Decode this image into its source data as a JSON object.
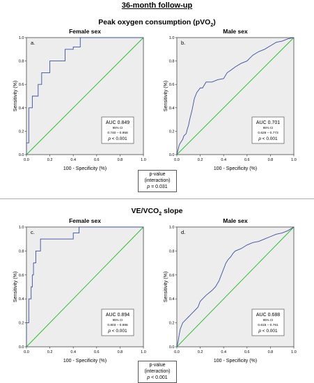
{
  "title": "36-month follow-up",
  "sections": [
    {
      "title_main": "Peak oxygen consumption (pVO",
      "title_sub": "2",
      "title_end": ")",
      "pvalue": {
        "line1": "p-value",
        "line2": "(interaction)",
        "p_sym": "p",
        "value": "= 0.031"
      }
    },
    {
      "title_main": "VE/VCO",
      "title_sub": "2",
      "title_end": " slope",
      "pvalue": {
        "line1": "p-value",
        "line2": "(interaction)",
        "p_sym": "p",
        "value": "< 0.001"
      }
    }
  ],
  "chart_data": [
    {
      "type": "line",
      "panel_title": "Female sex",
      "letter": "a.",
      "xlabel": "100 - Specificity (%)",
      "ylabel": "Sensitivity (%)",
      "xlim": [
        0,
        1
      ],
      "ylim": [
        0,
        1
      ],
      "xticks": [
        "0.0",
        "0.2",
        "0.4",
        "0.6",
        "0.8",
        "1.0"
      ],
      "yticks": [
        "0.0",
        "0.2",
        "0.4",
        "0.6",
        "0.8",
        "1.0"
      ],
      "series": [
        {
          "color": "#3a4fa0",
          "x": [
            0,
            0,
            0.02,
            0.02,
            0.05,
            0.05,
            0.1,
            0.1,
            0.13,
            0.13,
            0.2,
            0.2,
            0.33,
            0.33,
            0.4,
            0.4,
            0.46,
            0.46,
            1
          ],
          "y": [
            0,
            0.1,
            0.1,
            0.4,
            0.4,
            0.5,
            0.5,
            0.6,
            0.6,
            0.7,
            0.7,
            0.8,
            0.8,
            0.9,
            0.9,
            0.92,
            0.92,
            1,
            1
          ]
        },
        {
          "color": "#22bb22",
          "x": [
            0,
            1
          ],
          "y": [
            0,
            1
          ]
        }
      ],
      "stats": {
        "auc": "AUC 0.849",
        "ci_label": "95% CI",
        "ci": "0.740 – 0.958",
        "p_sym": "p",
        "p": "< 0.001"
      }
    },
    {
      "type": "line",
      "panel_title": "Male sex",
      "letter": "b.",
      "xlabel": "100 - Specificity (%)",
      "ylabel": "Sensitivity (%)",
      "xlim": [
        0,
        1
      ],
      "ylim": [
        0,
        1
      ],
      "xticks": [
        "0.0",
        "0.2",
        "0.4",
        "0.6",
        "0.8",
        "1.0"
      ],
      "yticks": [
        "0.0",
        "0.2",
        "0.4",
        "0.6",
        "0.8",
        "1.0"
      ],
      "series": [
        {
          "color": "#3a4fa0",
          "x": [
            0,
            0.01,
            0.02,
            0.03,
            0.05,
            0.06,
            0.08,
            0.09,
            0.1,
            0.11,
            0.12,
            0.13,
            0.14,
            0.15,
            0.17,
            0.2,
            0.22,
            0.25,
            0.3,
            0.35,
            0.4,
            0.43,
            0.46,
            0.5,
            0.55,
            0.6,
            0.62,
            0.65,
            0.7,
            0.75,
            0.8,
            0.85,
            0.9,
            0.95,
            1
          ],
          "y": [
            0,
            0.04,
            0.08,
            0.1,
            0.13,
            0.16,
            0.18,
            0.22,
            0.25,
            0.3,
            0.34,
            0.38,
            0.43,
            0.48,
            0.53,
            0.57,
            0.57,
            0.62,
            0.62,
            0.64,
            0.65,
            0.7,
            0.72,
            0.75,
            0.78,
            0.8,
            0.82,
            0.85,
            0.88,
            0.9,
            0.93,
            0.96,
            0.97,
            0.99,
            1
          ]
        },
        {
          "color": "#22bb22",
          "x": [
            0,
            1
          ],
          "y": [
            0,
            1
          ]
        }
      ],
      "stats": {
        "auc": "AUC 0.701",
        "ci_label": "95% CI",
        "ci": "0.629 – 0.773",
        "p_sym": "p",
        "p": "< 0.001"
      }
    },
    {
      "type": "line",
      "panel_title": "Female sex",
      "letter": "c.",
      "xlabel": "100 - Specificity (%)",
      "ylabel": "Sensitivity (%)",
      "xlim": [
        0,
        1
      ],
      "ylim": [
        0,
        1
      ],
      "xticks": [
        "0.0",
        "0.2",
        "0.4",
        "0.6",
        "0.8",
        "1.0"
      ],
      "yticks": [
        "0.0",
        "0.2",
        "0.4",
        "0.6",
        "0.8",
        "1.0"
      ],
      "series": [
        {
          "color": "#3a4fa0",
          "x": [
            0,
            0,
            0.02,
            0.02,
            0.04,
            0.04,
            0.05,
            0.05,
            0.06,
            0.06,
            0.08,
            0.08,
            0.12,
            0.12,
            0.2,
            0.2,
            0.4,
            0.4,
            0.45,
            0.45,
            1
          ],
          "y": [
            0,
            0.2,
            0.2,
            0.4,
            0.4,
            0.5,
            0.5,
            0.6,
            0.6,
            0.7,
            0.7,
            0.8,
            0.8,
            0.9,
            0.9,
            0.9,
            0.9,
            0.95,
            0.95,
            1,
            1
          ]
        },
        {
          "color": "#22bb22",
          "x": [
            0,
            1
          ],
          "y": [
            0,
            1
          ]
        }
      ],
      "stats": {
        "auc": "AUC 0.894",
        "ci_label": "95% CI",
        "ci": "0.803 – 0.986",
        "p_sym": "p",
        "p": "< 0.001"
      }
    },
    {
      "type": "line",
      "panel_title": "Male sex",
      "letter": "d.",
      "xlabel": "100 - Specificity (%)",
      "ylabel": "Sensitivity (%)",
      "xlim": [
        0,
        1
      ],
      "ylim": [
        0,
        1
      ],
      "xticks": [
        "0.0",
        "0.2",
        "0.4",
        "0.6",
        "0.8",
        "1.0"
      ],
      "yticks": [
        "0.0",
        "0.2",
        "0.4",
        "0.6",
        "0.8",
        "1.0"
      ],
      "series": [
        {
          "color": "#3a4fa0",
          "x": [
            0,
            0.01,
            0.02,
            0.03,
            0.05,
            0.08,
            0.1,
            0.12,
            0.15,
            0.18,
            0.2,
            0.22,
            0.25,
            0.3,
            0.33,
            0.36,
            0.38,
            0.4,
            0.42,
            0.44,
            0.46,
            0.48,
            0.5,
            0.55,
            0.6,
            0.65,
            0.7,
            0.75,
            0.8,
            0.85,
            0.9,
            0.95,
            1
          ],
          "y": [
            0,
            0.04,
            0.1,
            0.15,
            0.2,
            0.23,
            0.25,
            0.27,
            0.3,
            0.33,
            0.38,
            0.4,
            0.43,
            0.47,
            0.5,
            0.55,
            0.6,
            0.65,
            0.7,
            0.73,
            0.75,
            0.78,
            0.8,
            0.82,
            0.85,
            0.87,
            0.88,
            0.9,
            0.92,
            0.94,
            0.95,
            0.97,
            1
          ]
        },
        {
          "color": "#22bb22",
          "x": [
            0,
            1
          ],
          "y": [
            0,
            1
          ]
        }
      ],
      "stats": {
        "auc": "AUC 0.688",
        "ci_label": "95% CI",
        "ci": "0.615 – 0.761",
        "p_sym": "p",
        "p": "< 0.001"
      }
    }
  ]
}
